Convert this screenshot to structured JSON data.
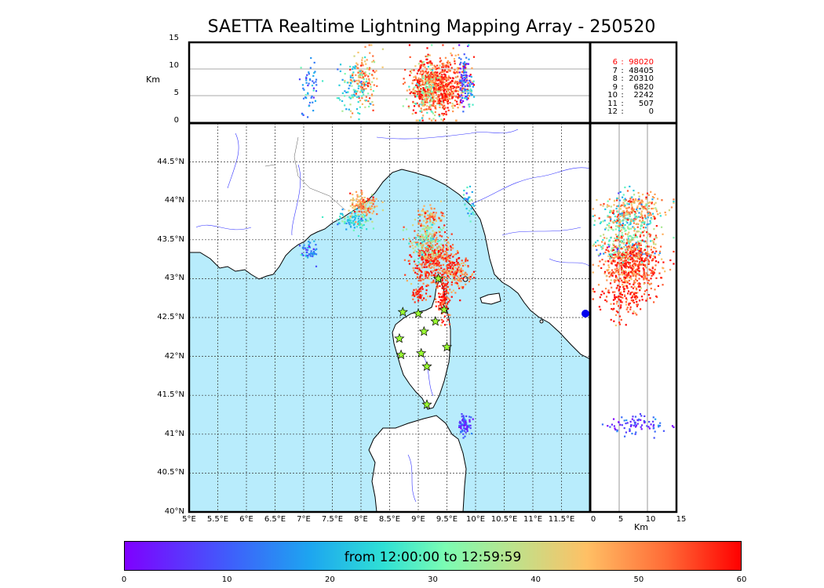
{
  "title": "SAETTA Realtime Lightning Mapping Array - 250520",
  "altitude_axis_label": "Km",
  "altitude_ticks": [
    "0",
    "5",
    "10",
    "15"
  ],
  "lat_ticks": [
    "40°N",
    "40.5°N",
    "41°N",
    "41.5°N",
    "42°N",
    "42.5°N",
    "43°N",
    "43.5°N",
    "44°N",
    "44.5°N"
  ],
  "lon_ticks": [
    "5°E",
    "5.5°E",
    "6°E",
    "6.5°E",
    "7°E",
    "7.5°E",
    "8°E",
    "8.5°E",
    "9°E",
    "9.5°E",
    "10°E",
    "10.5°E",
    "11°E",
    "11.5°E"
  ],
  "stations_legend": [
    {
      "stations": "6",
      "sep": ":",
      "count": "98020",
      "highlight": true
    },
    {
      "stations": "7",
      "sep": ":",
      "count": "48405",
      "highlight": false
    },
    {
      "stations": "8",
      "sep": ":",
      "count": "20310",
      "highlight": false
    },
    {
      "stations": "9",
      "sep": ":",
      "count": "6820",
      "highlight": false
    },
    {
      "stations": "10",
      "sep": ":",
      "count": "2242",
      "highlight": false
    },
    {
      "stations": "11",
      "sep": ":",
      "count": "507",
      "highlight": false
    },
    {
      "stations": "12",
      "sep": ":",
      "count": "0",
      "highlight": false
    }
  ],
  "colorbar": {
    "label": "from 12:00:00 to 12:59:59",
    "ticks": [
      "0",
      "10",
      "20",
      "30",
      "40",
      "50",
      "60"
    ],
    "range": [
      0,
      60
    ]
  },
  "map_extent": {
    "lon": [
      5,
      12
    ],
    "lat": [
      40,
      45
    ],
    "alt_km": [
      0,
      15
    ]
  },
  "colors": {
    "sea": "#b8ecfc",
    "land": "#ffffff",
    "coast": "#000000",
    "rivers": "#3333ff",
    "station_star": "#9bff33",
    "highlight_text": "#ff0000"
  },
  "stations_positions": [
    {
      "lon": 9.35,
      "lat": 43.0
    },
    {
      "lon": 8.73,
      "lat": 42.57
    },
    {
      "lon": 9.0,
      "lat": 42.55
    },
    {
      "lon": 9.45,
      "lat": 42.6
    },
    {
      "lon": 9.1,
      "lat": 42.32
    },
    {
      "lon": 9.3,
      "lat": 42.45
    },
    {
      "lon": 8.67,
      "lat": 42.23
    },
    {
      "lon": 9.5,
      "lat": 42.12
    },
    {
      "lon": 8.7,
      "lat": 42.02
    },
    {
      "lon": 9.05,
      "lat": 42.04
    },
    {
      "lon": 9.15,
      "lat": 41.87
    },
    {
      "lon": 9.15,
      "lat": 41.38
    }
  ],
  "lightning_clusters": [
    {
      "lon": 8.05,
      "lat": 43.95,
      "alt_km": 8.0,
      "time_min": 48,
      "lon_sd": 0.12,
      "lat_sd": 0.08,
      "count": 140
    },
    {
      "lon": 7.85,
      "lat": 43.75,
      "alt_km": 6.5,
      "time_min": 25,
      "lon_sd": 0.15,
      "lat_sd": 0.06,
      "count": 90
    },
    {
      "lon": 7.1,
      "lat": 43.35,
      "alt_km": 5.5,
      "time_min": 15,
      "lon_sd": 0.08,
      "lat_sd": 0.06,
      "count": 50
    },
    {
      "lon": 9.25,
      "lat": 43.25,
      "alt_km": 7.0,
      "time_min": 55,
      "lon_sd": 0.18,
      "lat_sd": 0.18,
      "count": 420
    },
    {
      "lon": 9.65,
      "lat": 43.1,
      "alt_km": 7.0,
      "time_min": 52,
      "lon_sd": 0.12,
      "lat_sd": 0.12,
      "count": 160
    },
    {
      "lon": 9.15,
      "lat": 43.5,
      "alt_km": 6.0,
      "time_min": 35,
      "lon_sd": 0.15,
      "lat_sd": 0.12,
      "count": 150
    },
    {
      "lon": 9.2,
      "lat": 43.8,
      "alt_km": 6.0,
      "time_min": 50,
      "lon_sd": 0.12,
      "lat_sd": 0.08,
      "count": 70
    },
    {
      "lon": 9.45,
      "lat": 42.7,
      "alt_km": 5.5,
      "time_min": 58,
      "lon_sd": 0.06,
      "lat_sd": 0.12,
      "count": 90
    },
    {
      "lon": 9.8,
      "lat": 41.12,
      "alt_km": 8.5,
      "time_min": 8,
      "lon_sd": 0.06,
      "lat_sd": 0.06,
      "count": 80
    },
    {
      "lon": 9.88,
      "lat": 43.95,
      "alt_km": 6.5,
      "time_min": 22,
      "lon_sd": 0.05,
      "lat_sd": 0.1,
      "count": 30
    },
    {
      "lon": 9.0,
      "lat": 42.8,
      "alt_km": 6.0,
      "time_min": 59,
      "lon_sd": 0.05,
      "lat_sd": 0.05,
      "count": 40
    }
  ]
}
